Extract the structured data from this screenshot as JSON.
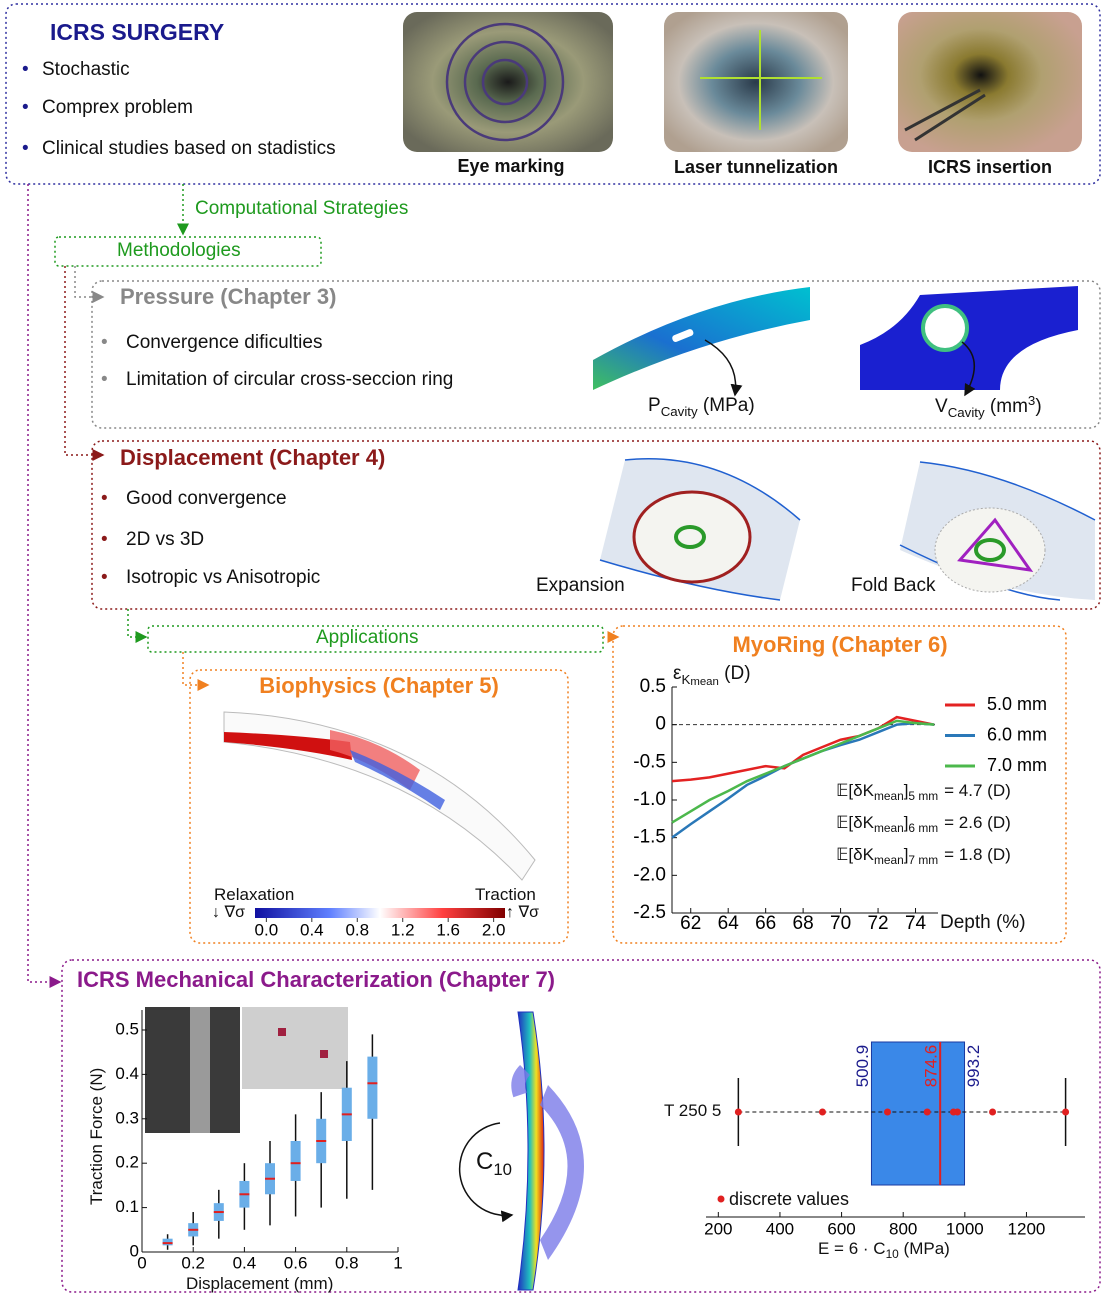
{
  "header": {
    "title": "ICRS SURGERY",
    "bullets": [
      "Stochastic",
      "Comprex problem",
      "Clinical studies based on stadistics"
    ],
    "photo_captions": [
      "Eye marking",
      "Laser tunnelization",
      "ICRS insertion"
    ]
  },
  "flow": {
    "computational": "Computational Strategies",
    "methodologies": "Methodologies",
    "applications": "Applications"
  },
  "pressure": {
    "title": "Pressure (Chapter 3)",
    "bullets": [
      "Convergence dificulties",
      "Limitation of circular cross-seccion ring"
    ],
    "p_label": {
      "main": "P",
      "sub": "Cavity",
      "unit": "(MPa)"
    },
    "v_label": {
      "main": "V",
      "sub": "Cavity",
      "unit": "(mm",
      "sup": "3",
      "close": ")"
    }
  },
  "displacement": {
    "title": "Displacement (Chapter 4)",
    "bullets": [
      "Good convergence",
      "2D vs 3D",
      "Isotropic vs Anisotropic"
    ],
    "labels": [
      "Expansion",
      "Fold Back"
    ]
  },
  "biophysics": {
    "title": "Biophysics (Chapter 5)",
    "relaxation": "Relaxation",
    "traction": "Traction",
    "down_symbol": "↓ ∇σ",
    "up_symbol": "↑ ∇σ",
    "colorbar": {
      "lim": [
        -0.1,
        2.1
      ],
      "ticks": [
        {
          "value": 0,
          "label": "0.0"
        },
        0.4,
        0.8,
        1.2,
        1.6,
        {
          "value": 2,
          "label": "2.0"
        }
      ]
    }
  },
  "myoring": {
    "title": "MyoRing (Chapter 6)",
    "chart_data": {
      "type": "line",
      "y_label": {
        "main": "ε",
        "sub": "K",
        "subsub": "mean",
        "unit": "(D)"
      },
      "x_label": "Depth (%)",
      "x": [
        61,
        62,
        63,
        64,
        65,
        66,
        67,
        68,
        69,
        70,
        71,
        72,
        73,
        74,
        75
      ],
      "series": [
        {
          "name": "5.0 mm",
          "color": "#e32222",
          "values": [
            -0.75,
            -0.73,
            -0.7,
            -0.65,
            -0.6,
            -0.55,
            -0.58,
            -0.4,
            -0.3,
            -0.2,
            -0.15,
            -0.05,
            0.1,
            0.05,
            0.0
          ]
        },
        {
          "name": "6.0 mm",
          "color": "#2a78b8",
          "values": [
            -1.5,
            -1.32,
            -1.15,
            -0.98,
            -0.8,
            -0.68,
            -0.55,
            -0.45,
            -0.35,
            -0.27,
            -0.2,
            -0.1,
            0.0,
            0.02,
            0.0
          ]
        },
        {
          "name": "7.0 mm",
          "color": "#4cb84c",
          "values": [
            -1.3,
            -1.15,
            -1.0,
            -0.88,
            -0.75,
            -0.65,
            -0.55,
            -0.45,
            -0.35,
            -0.25,
            -0.15,
            -0.05,
            0.05,
            0.02,
            0.0
          ]
        }
      ],
      "xlim": [
        61,
        75.2
      ],
      "xticks": [
        62,
        64,
        66,
        68,
        70,
        72,
        74
      ],
      "ylim": [
        -2.5,
        0.5
      ],
      "yticks": [
        0.5,
        0,
        -0.5,
        {
          "value": -1,
          "label": "-1.0"
        },
        -1.5,
        {
          "value": -2,
          "label": "-2.0"
        },
        -2.5
      ],
      "annotations": [
        {
          "prefix": "𝔼[δK",
          "sub": "mean",
          "close": "]",
          "subsub": "5 mm",
          "value": "= 4.7 (D)"
        },
        {
          "prefix": "𝔼[δK",
          "sub": "mean",
          "close": "]",
          "subsub": "6 mm",
          "value": "= 2.6 (D)"
        },
        {
          "prefix": "𝔼[δK",
          "sub": "mean",
          "close": "]",
          "subsub": "7 mm",
          "value": "= 1.8 (D)"
        }
      ]
    }
  },
  "characterization": {
    "title": "ICRS Mechanical Characterization (Chapter 7)",
    "force_chart": {
      "type": "box",
      "y_label": "Traction Force (N)",
      "x_label": "Displacement (mm)",
      "x": [
        0.1,
        0.2,
        0.3,
        0.4,
        0.5,
        0.6,
        0.7,
        0.8,
        0.9
      ],
      "median": [
        0.02,
        0.05,
        0.09,
        0.13,
        0.165,
        0.2,
        0.25,
        0.31,
        0.38
      ],
      "q1": [
        0.015,
        0.035,
        0.07,
        0.1,
        0.13,
        0.16,
        0.2,
        0.25,
        0.3
      ],
      "q3": [
        0.03,
        0.065,
        0.11,
        0.16,
        0.2,
        0.25,
        0.3,
        0.37,
        0.44
      ],
      "whisker_low": [
        0.005,
        0.015,
        0.03,
        0.05,
        0.06,
        0.08,
        0.1,
        0.12,
        0.14
      ],
      "whisker_high": [
        0.04,
        0.09,
        0.14,
        0.2,
        0.25,
        0.31,
        0.36,
        0.43,
        0.49
      ],
      "color": "#6aaee8",
      "xlim": [
        0,
        1
      ],
      "xticks": [
        0,
        0.2,
        0.4,
        0.6,
        0.8,
        1
      ],
      "ylim": [
        0,
        0.545
      ],
      "yticks": [
        0,
        0.1,
        0.2,
        0.3,
        0.4,
        0.5
      ]
    },
    "c10_label": {
      "main": "C",
      "sub": "10"
    },
    "e_chart": {
      "type": "box",
      "category": "T 250 5",
      "points": [
        265,
        538,
        749,
        878,
        963,
        976,
        1090,
        1327
      ],
      "whisker_low": 265,
      "whisker_high": 1327,
      "box_low": 697,
      "box_high": 999,
      "center": 920,
      "box_labels": [
        "500.9",
        "874.6",
        "993.2"
      ],
      "legend": "discrete values",
      "x_label": {
        "main": "E = 6 · C",
        "sub": "10",
        "unit": "(MPa)"
      },
      "xlim": [
        160,
        1390
      ],
      "xticks": [
        200,
        400,
        600,
        800,
        1000,
        1200
      ]
    }
  }
}
